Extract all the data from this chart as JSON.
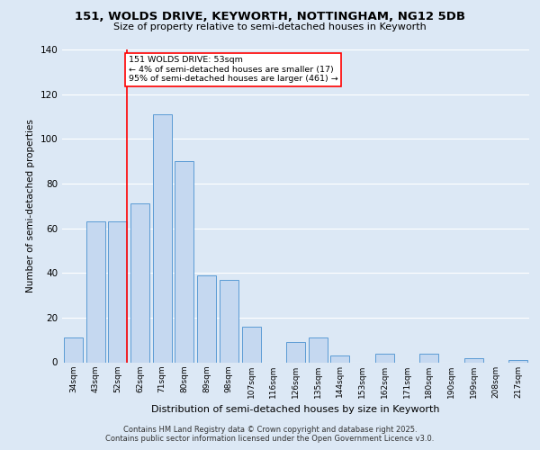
{
  "title1": "151, WOLDS DRIVE, KEYWORTH, NOTTINGHAM, NG12 5DB",
  "title2": "Size of property relative to semi-detached houses in Keyworth",
  "xlabel": "Distribution of semi-detached houses by size in Keyworth",
  "ylabel": "Number of semi-detached properties",
  "categories": [
    "34sqm",
    "43sqm",
    "52sqm",
    "62sqm",
    "71sqm",
    "80sqm",
    "89sqm",
    "98sqm",
    "107sqm",
    "116sqm",
    "126sqm",
    "135sqm",
    "144sqm",
    "153sqm",
    "162sqm",
    "171sqm",
    "180sqm",
    "190sqm",
    "199sqm",
    "208sqm",
    "217sqm"
  ],
  "values": [
    11,
    63,
    63,
    71,
    111,
    90,
    39,
    37,
    16,
    0,
    9,
    11,
    3,
    0,
    4,
    0,
    4,
    0,
    2,
    0,
    1
  ],
  "bar_color": "#c5d8f0",
  "bar_edge_color": "#5b9bd5",
  "vline_x_index": 2,
  "annotation_title": "151 WOLDS DRIVE: 53sqm",
  "annotation_line1": "← 4% of semi-detached houses are smaller (17)",
  "annotation_line2": "95% of semi-detached houses are larger (461) →",
  "ylim": [
    0,
    140
  ],
  "yticks": [
    0,
    20,
    40,
    60,
    80,
    100,
    120,
    140
  ],
  "footer1": "Contains HM Land Registry data © Crown copyright and database right 2025.",
  "footer2": "Contains public sector information licensed under the Open Government Licence v3.0.",
  "bg_color": "#dce8f5",
  "plot_bg_color": "#dce8f5"
}
